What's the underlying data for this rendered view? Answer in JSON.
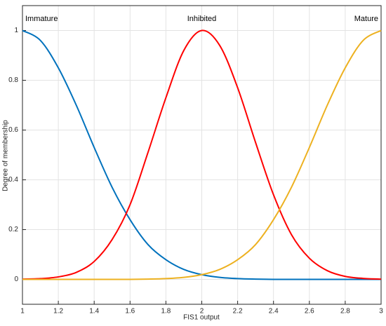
{
  "chart_data": {
    "type": "line",
    "xlabel": "FIS1 output",
    "ylabel": "Degree of membership",
    "x": [
      1,
      1.1,
      1.2,
      1.3,
      1.4,
      1.5,
      1.6,
      1.7,
      1.8,
      1.9,
      2,
      2.1,
      2.2,
      2.3,
      2.4,
      2.5,
      2.6,
      2.7,
      2.8,
      2.9,
      3
    ],
    "series": [
      {
        "name": "Immature",
        "color": "#0072bd",
        "values": [
          1,
          0.96,
          0.85,
          0.7,
          0.53,
          0.37,
          0.24,
          0.14,
          0.079,
          0.04,
          0.019,
          0.008,
          0.003,
          0.001,
          0,
          0,
          0,
          0,
          0,
          0,
          0
        ]
      },
      {
        "name": "Inhibited",
        "color": "#ff0000",
        "values": [
          0.001,
          0.003,
          0.01,
          0.028,
          0.072,
          0.16,
          0.3,
          0.51,
          0.73,
          0.92,
          1,
          0.94,
          0.77,
          0.55,
          0.34,
          0.18,
          0.085,
          0.035,
          0.012,
          0.004,
          0.001
        ]
      },
      {
        "name": "Mature",
        "color": "#edb120",
        "values": [
          0,
          0,
          0,
          0,
          0,
          0,
          0,
          0.001,
          0.003,
          0.008,
          0.019,
          0.04,
          0.079,
          0.14,
          0.24,
          0.37,
          0.53,
          0.7,
          0.85,
          0.96,
          1
        ]
      }
    ],
    "xlim": [
      1,
      3
    ],
    "xticks": [
      1,
      1.2,
      1.4,
      1.6,
      1.8,
      2,
      2.2,
      2.4,
      2.6,
      2.8,
      3
    ],
    "ylim": [
      -0.1,
      1.1
    ],
    "yticks": [
      0,
      0.2,
      0.4,
      0.6,
      0.8,
      1
    ],
    "grid": true
  }
}
